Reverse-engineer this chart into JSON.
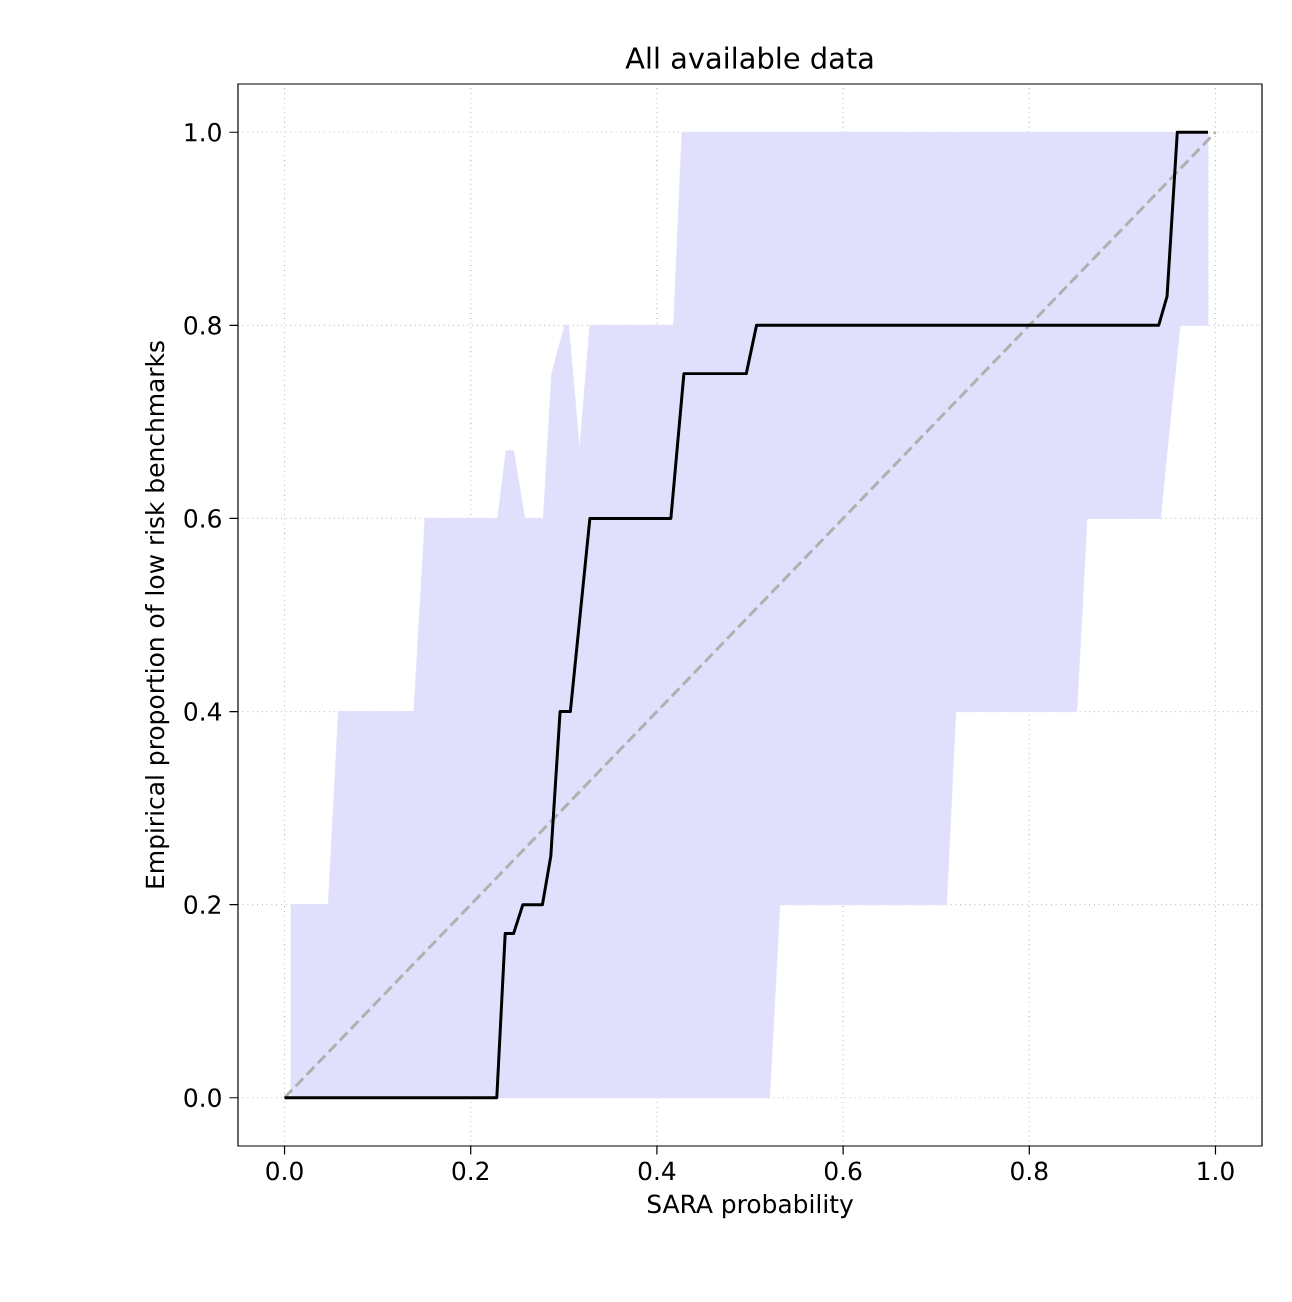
{
  "chart_data": {
    "type": "line",
    "title": "All available data",
    "xlabel": "SARA probability",
    "ylabel": "Empirical proportion of low risk benchmarks",
    "xlim": [
      -0.05,
      1.05
    ],
    "ylim": [
      -0.05,
      1.05
    ],
    "xticks": [
      {
        "value": 0,
        "label": "0.0"
      },
      {
        "value": 0.2,
        "label": "0.2"
      },
      {
        "value": 0.4,
        "label": "0.4"
      },
      {
        "value": 0.6,
        "label": "0.6"
      },
      {
        "value": 0.8,
        "label": "0.8"
      },
      {
        "value": 1,
        "label": "1.0"
      }
    ],
    "yticks": [
      {
        "value": 0,
        "label": "0.0"
      },
      {
        "value": 0.2,
        "label": "0.2"
      },
      {
        "value": 0.4,
        "label": "0.4"
      },
      {
        "value": 0.6,
        "label": "0.6"
      },
      {
        "value": 0.8,
        "label": "0.8"
      },
      {
        "value": 1,
        "label": "1.0"
      }
    ],
    "grid": true,
    "series": [
      {
        "type": "area",
        "color": "#e0e0fc",
        "values": [
          null,
          null,
          null,
          null,
          null,
          null,
          null,
          null,
          null,
          null,
          null,
          null,
          null,
          null,
          null,
          null,
          null,
          null,
          null,
          null,
          null,
          null,
          null,
          null,
          null,
          null,
          null
        ],
        "x": [
          0.007,
          0.047,
          0.058,
          0.139,
          0.151,
          0.229,
          0.238,
          0.246,
          0.258,
          0.278,
          0.287,
          0.301,
          0.305,
          0.317,
          0.328,
          0.418,
          0.427,
          0.521,
          0.532,
          0.711,
          0.721,
          0.851,
          0.862,
          0.941,
          0.948,
          0.962,
          0.992
        ],
        "lower": [
          0,
          0,
          0,
          0,
          0,
          0,
          0,
          0,
          0,
          0,
          0,
          0,
          0,
          0,
          0,
          0,
          0,
          0,
          0.2,
          0.2,
          0.4,
          0.4,
          0.6,
          0.6,
          0.67,
          0.8,
          0.8
        ],
        "upper": [
          0.2,
          0.2,
          0.4,
          0.4,
          0.6,
          0.6,
          0.67,
          0.67,
          0.6,
          0.6,
          0.75,
          0.8,
          0.8,
          0.67,
          0.8,
          0.8,
          1,
          1,
          1,
          1,
          1,
          1,
          1,
          1,
          1,
          1,
          1
        ]
      },
      {
        "color": "#b0b0b0",
        "line_style": "dashed",
        "x": [
          0,
          1
        ],
        "values": [
          0,
          1
        ]
      },
      {
        "color": "#000000",
        "line_style": "solid",
        "x": [
          0.0,
          0.228,
          0.237,
          0.246,
          0.256,
          0.277,
          0.286,
          0.296,
          0.307,
          0.328,
          0.415,
          0.429,
          0.496,
          0.507,
          0.939,
          0.948,
          0.959,
          0.992
        ],
        "values": [
          0,
          0,
          0.17,
          0.17,
          0.2,
          0.2,
          0.25,
          0.4,
          0.4,
          0.6,
          0.6,
          0.75,
          0.75,
          0.8,
          0.8,
          0.83,
          1,
          1
        ]
      }
    ]
  }
}
